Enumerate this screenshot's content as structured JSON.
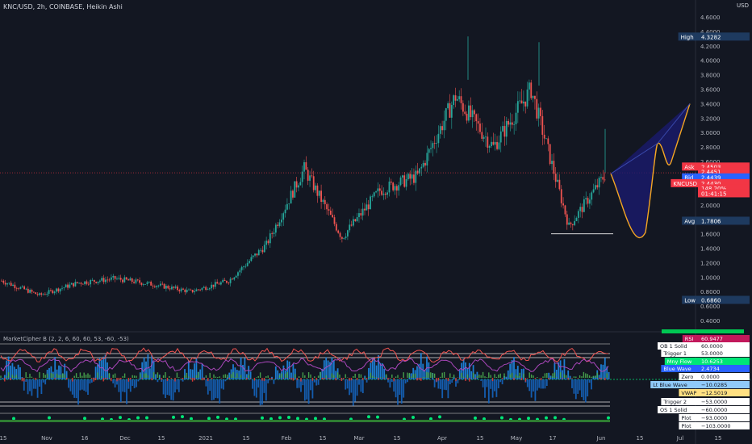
{
  "header": {
    "symbol_line": "KNC/USD, 2h, COINBASE, Heikin Ashi",
    "currency": "USD"
  },
  "indicator": {
    "title": "MarketCipher B (2, 2, 6, 60, 60, 53, -60, -53)"
  },
  "chart_data": {
    "type": "candlestick",
    "price_axis": {
      "ticks": [
        "4.6000",
        "4.4000",
        "4.2000",
        "4.0000",
        "3.8000",
        "3.6000",
        "3.4000",
        "3.2000",
        "3.0000",
        "2.8000",
        "2.6000",
        "2.4000",
        "2.2000",
        "2.0000",
        "1.8000",
        "1.6000",
        "1.4000",
        "1.2000",
        "1.0000",
        "0.8000",
        "0.6000",
        "0.4000"
      ],
      "range": [
        0.3,
        4.7
      ]
    },
    "time_axis": {
      "ticks": [
        "15",
        "Nov",
        "16",
        "Dec",
        "15",
        "2021",
        "15",
        "Feb",
        "15",
        "Mar",
        "15",
        "Apr",
        "15",
        "May",
        "17",
        "Jun",
        "15",
        "Jul",
        "15"
      ]
    },
    "price_path": [
      {
        "t": "Oct 15",
        "v": 0.95
      },
      {
        "t": "Nov",
        "v": 0.75
      },
      {
        "t": "Nov 16",
        "v": 0.92
      },
      {
        "t": "Dec",
        "v": 0.98
      },
      {
        "t": "Dec 15",
        "v": 0.9
      },
      {
        "t": "2021",
        "v": 0.8
      },
      {
        "t": "Jan 15",
        "v": 0.95
      },
      {
        "t": "Feb",
        "v": 1.45
      },
      {
        "t": "Feb 15",
        "v": 2.5
      },
      {
        "t": "Mar",
        "v": 1.55
      },
      {
        "t": "Mar 15",
        "v": 2.2
      },
      {
        "t": "Apr",
        "v": 2.4
      },
      {
        "t": "Apr 15",
        "v": 3.5
      },
      {
        "t": "May",
        "v": 2.8
      },
      {
        "t": "May 15",
        "v": 3.6
      },
      {
        "t": "May 17",
        "v": 1.7
      },
      {
        "t": "Jun",
        "v": 2.45
      }
    ],
    "price_labels": [
      {
        "name": "High",
        "value": "4.3282",
        "color": "#1e3a5f"
      },
      {
        "name": "Ask",
        "value": "2.4503",
        "color": "#f23645"
      },
      {
        "name": "",
        "value": "2.4451",
        "color": "#f23645"
      },
      {
        "name": "Bid",
        "value": "2.4439",
        "color": "#2962ff"
      },
      {
        "name": "KNCUSD",
        "value": "2.4430",
        "color": "#f23645"
      },
      {
        "name": "",
        "value": "148.20%",
        "color": "#f23645"
      },
      {
        "name": "",
        "value": "01:41:15",
        "color": "#f23645"
      },
      {
        "name": "Avg",
        "value": "1.7806",
        "color": "#1e3a5f"
      },
      {
        "name": "Low",
        "value": "0.6860",
        "color": "#1e3a5f"
      }
    ],
    "indicator_labels": [
      {
        "name": "RSI",
        "value": "60.9477",
        "color": "#c2185b"
      },
      {
        "name": "OB 1 Solid",
        "value": "60.0000",
        "color": "#ffffff"
      },
      {
        "name": "Trigger 1",
        "value": "53.0000",
        "color": "#ffffff"
      },
      {
        "name": "Mny Flow",
        "value": "10.6253",
        "color": "#00e676"
      },
      {
        "name": "Blue Wave",
        "value": "2.4734",
        "color": "#2962ff"
      },
      {
        "name": "Zero",
        "value": "0.0000",
        "color": "#ffffff"
      },
      {
        "name": "Lt Blue Wave",
        "value": "−10.0285",
        "color": "#90caf9"
      },
      {
        "name": "VWAP",
        "value": "−12.5019",
        "color": "#ffe082"
      },
      {
        "name": "Trigger 2",
        "value": "−53.0000",
        "color": "#ffffff"
      },
      {
        "name": "OS 1 Solid",
        "value": "−60.0000",
        "color": "#ffffff"
      },
      {
        "name": "Plot",
        "value": "−93.0000",
        "color": "#ffffff"
      },
      {
        "name": "Plot",
        "value": "−103.0000",
        "color": "#ffffff"
      }
    ],
    "colors": {
      "background": "#131722",
      "up": "#26a69a",
      "down": "#ef5350",
      "projection_fill": "#1a1a6e",
      "projection_line": "#f5a623"
    }
  }
}
